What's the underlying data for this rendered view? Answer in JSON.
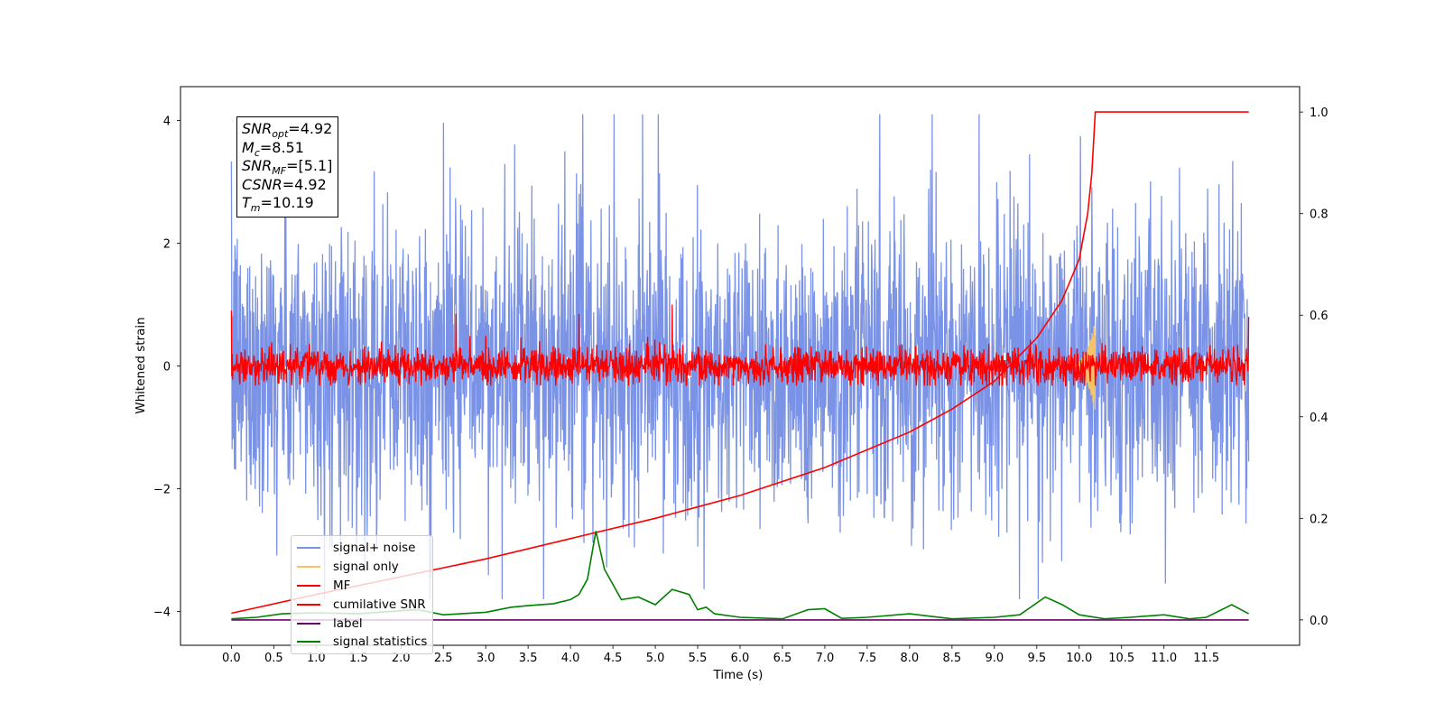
{
  "chart_data": {
    "type": "line",
    "xlabel": "Time (s)",
    "ylabel": "Whitened strain",
    "xlim": [
      -0.6,
      12.6
    ],
    "ylim": [
      -4.55,
      4.55
    ],
    "ylim_right": [
      -0.05,
      1.05
    ],
    "grid": false,
    "legend_position": "lower-left",
    "x_ticks": [
      "0.0",
      "0.5",
      "1.0",
      "1.5",
      "2.0",
      "2.5",
      "3.0",
      "3.5",
      "4.0",
      "4.5",
      "5.0",
      "5.5",
      "6.0",
      "6.5",
      "7.0",
      "7.5",
      "8.0",
      "8.5",
      "9.0",
      "9.5",
      "10.0",
      "10.5",
      "11.0",
      "11.5"
    ],
    "y_ticks_left": [
      "4",
      "2",
      "0",
      "−2",
      "−4"
    ],
    "y_ticks_right": [
      "1.0",
      "0.8",
      "0.6",
      "0.4",
      "0.2",
      "0.0"
    ],
    "annotation": {
      "snr_opt": {
        "symbol": "SNR",
        "sub": "opt",
        "value": "=4.92"
      },
      "mc": {
        "symbol": "M",
        "sub": "c",
        "value": "=8.51"
      },
      "snr_mf": {
        "symbol": "SNR",
        "sub": "MF",
        "value": "=[5.1]"
      },
      "csnr": {
        "symbol": "CSNR",
        "sub": "",
        "value": "=4.92"
      },
      "tm": {
        "symbol": "T",
        "sub": "m",
        "value": "=10.19"
      }
    },
    "series": [
      {
        "name": "signal+ noise",
        "color": "#7a93e6",
        "axis": "left",
        "description_envelope": {
          "x_range": [
            0,
            12.0
          ],
          "typical_abs": 1.2,
          "peak_max": 4.1,
          "peak_min": -3.8
        }
      },
      {
        "name": "signal only",
        "color": "#f5c469",
        "axis": "left",
        "chirp_end": 10.19,
        "peak_amplitude": 0.75
      },
      {
        "name": "MF",
        "color": "#ff0000",
        "axis": "left",
        "description_envelope": {
          "x_range": [
            0,
            12.0
          ],
          "typical_abs": 0.25,
          "peaks": [
            [
              0.0,
              0.9
            ],
            [
              2.65,
              0.85
            ],
            [
              4.1,
              0.85
            ],
            [
              5.2,
              1.0
            ],
            [
              12.0,
              0.8
            ]
          ]
        }
      },
      {
        "name": "cumilative SNR",
        "color": "#ff0000",
        "axis": "right",
        "x": [
          0.0,
          1.0,
          2.0,
          3.0,
          4.0,
          5.0,
          6.0,
          7.0,
          8.0,
          8.5,
          9.0,
          9.5,
          9.8,
          10.0,
          10.1,
          10.15,
          10.19,
          12.0
        ],
        "values": [
          0.013,
          0.05,
          0.085,
          0.12,
          0.16,
          0.2,
          0.245,
          0.3,
          0.37,
          0.415,
          0.47,
          0.555,
          0.63,
          0.71,
          0.8,
          0.88,
          1.0,
          1.0
        ]
      },
      {
        "name": "label",
        "color": "#6a006a",
        "axis": "right",
        "x": [
          0.0,
          12.0
        ],
        "values": [
          0.0,
          0.0
        ]
      },
      {
        "name": "signal statistics",
        "color": "#008000",
        "axis": "right",
        "x": [
          0.0,
          0.3,
          0.6,
          1.0,
          1.5,
          2.0,
          2.2,
          2.5,
          3.0,
          3.3,
          3.5,
          3.8,
          4.0,
          4.1,
          4.2,
          4.3,
          4.4,
          4.6,
          4.8,
          5.0,
          5.1,
          5.2,
          5.4,
          5.5,
          5.6,
          5.7,
          6.0,
          6.5,
          6.8,
          7.0,
          7.2,
          7.5,
          8.0,
          8.5,
          9.0,
          9.3,
          9.6,
          9.8,
          10.0,
          10.3,
          10.6,
          11.0,
          11.3,
          11.5,
          11.8,
          12.0
        ],
        "values": [
          0.002,
          0.005,
          0.012,
          0.014,
          0.012,
          0.018,
          0.02,
          0.01,
          0.015,
          0.025,
          0.028,
          0.032,
          0.04,
          0.05,
          0.08,
          0.175,
          0.1,
          0.04,
          0.045,
          0.03,
          0.045,
          0.06,
          0.05,
          0.02,
          0.025,
          0.012,
          0.005,
          0.002,
          0.02,
          0.022,
          0.003,
          0.005,
          0.012,
          0.002,
          0.005,
          0.01,
          0.045,
          0.03,
          0.01,
          0.002,
          0.005,
          0.01,
          0.002,
          0.005,
          0.03,
          0.012
        ]
      }
    ]
  }
}
